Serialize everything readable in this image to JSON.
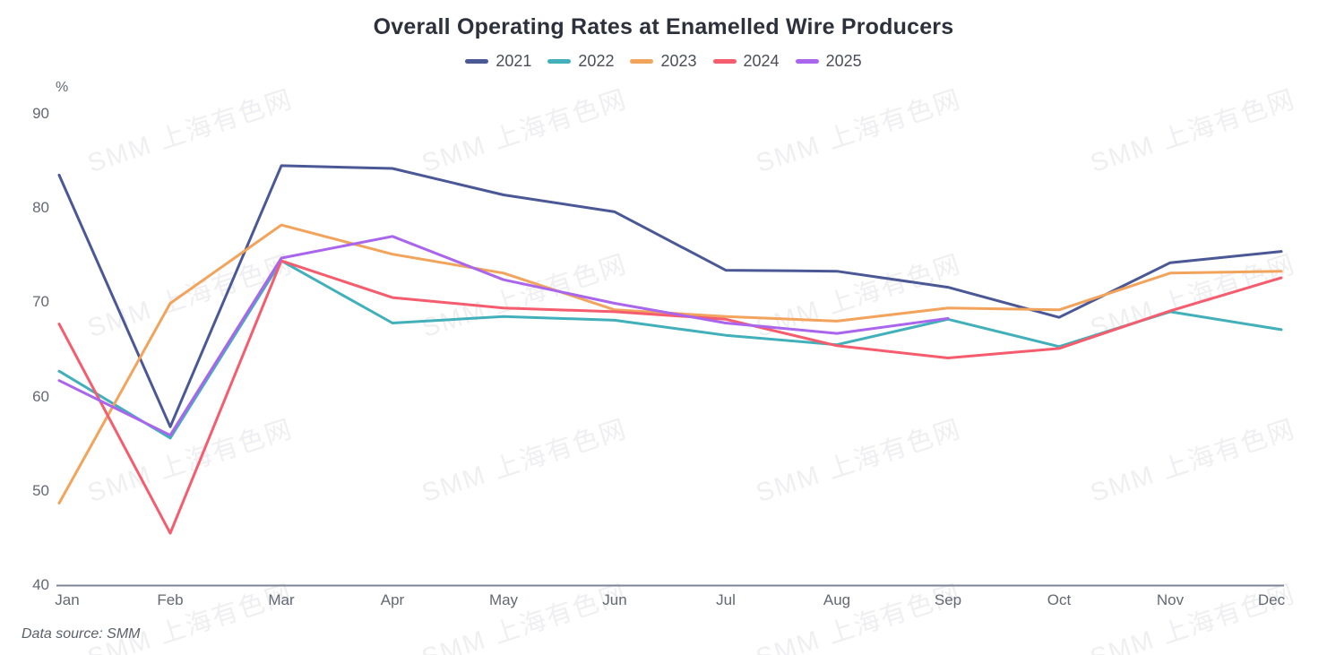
{
  "title": "Overall Operating Rates at Enamelled Wire Producers",
  "unit_label": "%",
  "source_note": "Data source:  SMM",
  "watermark_text": "SMM 上海有色网",
  "chart_data": {
    "type": "line",
    "categories": [
      "Jan",
      "Feb",
      "Mar",
      "Apr",
      "May",
      "Jun",
      "Jul",
      "Aug",
      "Sep",
      "Oct",
      "Nov",
      "Dec"
    ],
    "title": "Overall Operating Rates at Enamelled Wire Producers",
    "xlabel": "",
    "ylabel": "%",
    "ylim": [
      40,
      90
    ],
    "ytick_interval": 10,
    "grid": false,
    "legend_position": "top",
    "series": [
      {
        "name": "2021",
        "color": "#4A5896",
        "values": [
          83.5,
          56.8,
          84.5,
          84.2,
          81.4,
          79.6,
          73.4,
          73.3,
          71.6,
          68.4,
          74.2,
          75.4
        ]
      },
      {
        "name": "2022",
        "color": "#41B0BA",
        "values": [
          62.7,
          55.6,
          74.4,
          67.8,
          68.5,
          68.1,
          66.5,
          65.5,
          68.2,
          65.3,
          69.0,
          67.1
        ]
      },
      {
        "name": "2023",
        "color": "#F2A35C",
        "values": [
          48.7,
          69.9,
          78.2,
          75.1,
          73.1,
          69.2,
          68.5,
          68.0,
          69.4,
          69.2,
          73.1,
          73.3
        ]
      },
      {
        "name": "2024",
        "color": "#F55C6D",
        "values": [
          67.7,
          45.5,
          74.4,
          70.5,
          69.4,
          69.0,
          68.2,
          65.4,
          64.1,
          65.1,
          69.1,
          72.6
        ]
      },
      {
        "name": "2025",
        "color": "#A966ED",
        "values": [
          61.7,
          55.9,
          74.7,
          77.0,
          72.4,
          69.9,
          67.8,
          66.7,
          68.3,
          null,
          null,
          null
        ]
      }
    ]
  }
}
